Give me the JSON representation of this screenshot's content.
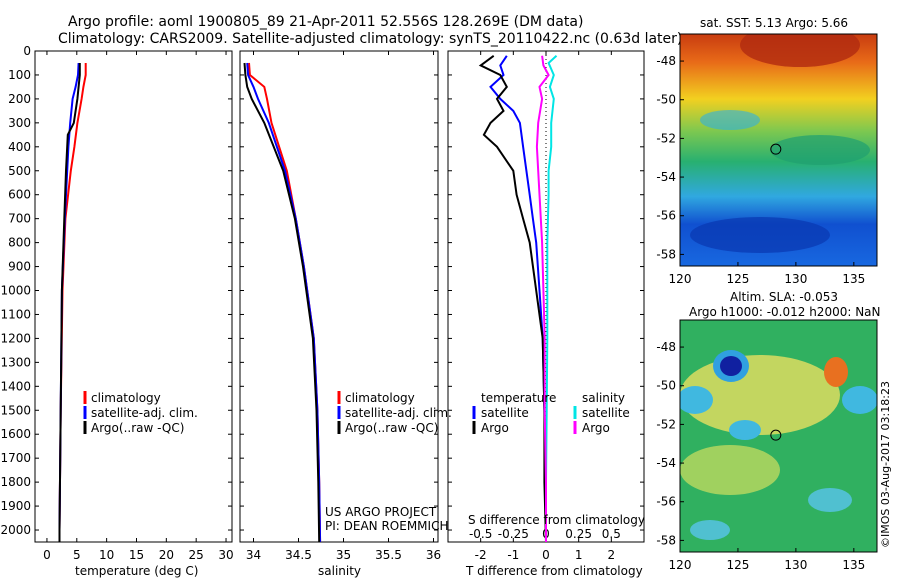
{
  "header": {
    "line1": "Argo profile: aoml 1900805_89 21-Apr-2011 52.556S 128.269E (DM data)",
    "line2": "Climatology: CARS2009. Satellite-adjusted climatology: synTS_20110422.nc (0.63d later)"
  },
  "depth_ticks": [
    0,
    100,
    200,
    300,
    400,
    500,
    600,
    700,
    800,
    900,
    1000,
    1100,
    1200,
    1300,
    1400,
    1500,
    1600,
    1700,
    1800,
    1900,
    2000
  ],
  "colors": {
    "climatology": "#ff0000",
    "satellite": "#0000ff",
    "argo": "#000000",
    "sat_salinity": "#00e5e5",
    "argo_salinity": "#ff00ff"
  },
  "chart_data": [
    {
      "type": "line",
      "xlabel": "temperature (deg C)",
      "xticks": [
        0,
        5,
        10,
        15,
        20,
        25,
        30
      ],
      "xlim": [
        -2,
        31
      ],
      "ylim": [
        2050,
        0
      ],
      "legend": [
        "climatology",
        "satellite-adj. clim.",
        "Argo(..raw -QC)"
      ],
      "series": [
        {
          "name": "climatology",
          "depth": [
            50,
            100,
            150,
            200,
            300,
            400,
            500,
            700,
            1000,
            1500,
            2000,
            2050
          ],
          "values": [
            6.5,
            6.5,
            6.1,
            5.8,
            5.1,
            4.6,
            4.0,
            3.1,
            2.6,
            2.3,
            2.1,
            2.1
          ]
        },
        {
          "name": "satellite-adj. clim.",
          "depth": [
            50,
            100,
            150,
            200,
            300,
            400,
            500,
            700,
            1000,
            1500,
            2000,
            2050
          ],
          "values": [
            5.3,
            5.2,
            4.8,
            4.3,
            3.9,
            3.6,
            3.4,
            3.0,
            2.5,
            2.3,
            2.1,
            2.1
          ]
        },
        {
          "name": "Argo(..raw -QC)",
          "depth": [
            50,
            100,
            150,
            200,
            300,
            350,
            400,
            500,
            700,
            1000,
            1500,
            2000,
            2050
          ],
          "values": [
            5.5,
            5.5,
            5.3,
            5.1,
            4.5,
            3.5,
            3.4,
            3.2,
            2.9,
            2.5,
            2.3,
            2.1,
            2.1
          ]
        }
      ]
    },
    {
      "type": "line",
      "xlabel": "salinity",
      "xticks": [
        34,
        34.5,
        35,
        35.5,
        36
      ],
      "xlim": [
        33.85,
        36.05
      ],
      "ylim": [
        2050,
        0
      ],
      "legend": [
        "climatology",
        "satellite-adj. clim.",
        "Argo(..raw -QC)"
      ],
      "series": [
        {
          "name": "climatology",
          "depth": [
            50,
            100,
            150,
            200,
            300,
            500,
            700,
            900,
            1200,
            1500,
            1800,
            2050
          ],
          "values": [
            33.95,
            33.96,
            34.12,
            34.15,
            34.2,
            34.37,
            34.47,
            34.56,
            34.67,
            34.71,
            34.73,
            34.74
          ]
        },
        {
          "name": "satellite-adj. clim.",
          "depth": [
            50,
            100,
            150,
            200,
            300,
            500,
            700,
            900,
            1200,
            1500,
            1800,
            2050
          ],
          "values": [
            33.93,
            33.94,
            34.0,
            34.05,
            34.17,
            34.35,
            34.47,
            34.56,
            34.67,
            34.71,
            34.73,
            34.74
          ]
        },
        {
          "name": "Argo(..raw -QC)",
          "depth": [
            50,
            100,
            150,
            200,
            300,
            500,
            700,
            900,
            1200,
            1500,
            1800,
            2050
          ],
          "values": [
            33.9,
            33.91,
            33.93,
            33.98,
            34.12,
            34.33,
            34.46,
            34.55,
            34.66,
            34.7,
            34.72,
            34.73
          ]
        }
      ]
    },
    {
      "type": "line",
      "xlabel": "T difference from climatology",
      "xlabel_top": "S difference from climatology",
      "xticks": [
        -2,
        -1,
        0,
        1,
        2
      ],
      "xticks_top": [
        -0.5,
        -0.25,
        0,
        0.25,
        0.5
      ],
      "xticks_top_labels": [
        "-0.5",
        "-0.25",
        "0",
        "0.25",
        "0.5"
      ],
      "xlim": [
        -3,
        3
      ],
      "ylim": [
        2050,
        0
      ],
      "legend_temperature_title": "temperature",
      "legend_salinity_title": "salinity",
      "legend": [
        "satellite",
        "Argo",
        "satellite",
        "Argo"
      ],
      "series": [
        {
          "name": "satellite",
          "group": "temperature",
          "depth": [
            20,
            60,
            100,
            150,
            200,
            250,
            300,
            400,
            500,
            600,
            700,
            800,
            1000,
            1200,
            1500,
            1800,
            2050
          ],
          "values": [
            -1.2,
            -1.4,
            -1.3,
            -1.7,
            -1.4,
            -1.0,
            -0.8,
            -0.7,
            -0.6,
            -0.5,
            -0.4,
            -0.3,
            -0.2,
            -0.1,
            -0.05,
            0,
            0
          ]
        },
        {
          "name": "Argo",
          "group": "temperature",
          "depth": [
            20,
            60,
            100,
            150,
            200,
            250,
            300,
            350,
            400,
            500,
            600,
            700,
            800,
            1000,
            1200,
            1500,
            1800,
            2050
          ],
          "values": [
            -1.6,
            -2.0,
            -1.4,
            -1.2,
            -1.5,
            -1.3,
            -1.7,
            -1.9,
            -1.5,
            -1.0,
            -0.9,
            -0.7,
            -0.5,
            -0.3,
            -0.1,
            -0.05,
            -0.05,
            0
          ]
        },
        {
          "name": "satellite",
          "group": "salinity",
          "depth": [
            20,
            50,
            100,
            150,
            200,
            300,
            400,
            500,
            600,
            800,
            1000,
            1200,
            1500,
            1800,
            2050
          ],
          "values": [
            0.08,
            0.02,
            0.06,
            0.03,
            0.06,
            0.04,
            0.04,
            0.02,
            0.02,
            0.01,
            0.01,
            0.01,
            0.005,
            0,
            0
          ]
        },
        {
          "name": "Argo",
          "group": "salinity",
          "depth": [
            20,
            60,
            100,
            150,
            200,
            300,
            400,
            500,
            600,
            800,
            1000,
            1200,
            1500,
            1800,
            2050
          ],
          "values": [
            -0.03,
            -0.02,
            0.02,
            -0.05,
            -0.03,
            -0.06,
            -0.07,
            -0.06,
            -0.05,
            -0.03,
            -0.02,
            -0.01,
            -0.01,
            0,
            0
          ]
        }
      ],
      "credit_line1": "US ARGO PROJECT",
      "credit_line2": "PI: DEAN ROEMMICH"
    },
    {
      "type": "heatmap",
      "title": "sat. SST: 5.13 Argo: 5.66",
      "xticks": [
        120,
        125,
        130,
        135
      ],
      "yticks": [
        -48,
        -50,
        -52,
        -54,
        -56,
        -58
      ],
      "xlim": [
        120,
        137
      ],
      "ylim": [
        -58.6,
        -46.6
      ],
      "marker": {
        "lon": 128.269,
        "lat": -52.556
      }
    },
    {
      "type": "heatmap",
      "title_line1": "Altim. SLA: -0.053",
      "title_line2": "Argo h1000: -0.012 h2000: NaN",
      "xticks": [
        120,
        125,
        130,
        135
      ],
      "yticks": [
        -48,
        -50,
        -52,
        -54,
        -56,
        -58
      ],
      "xlim": [
        120,
        137
      ],
      "ylim": [
        -58.6,
        -46.6
      ],
      "marker": {
        "lon": 128.269,
        "lat": -52.556
      }
    }
  ],
  "footer": {
    "watermark": "©IMOS 03-Aug-2017 03:18:23"
  }
}
